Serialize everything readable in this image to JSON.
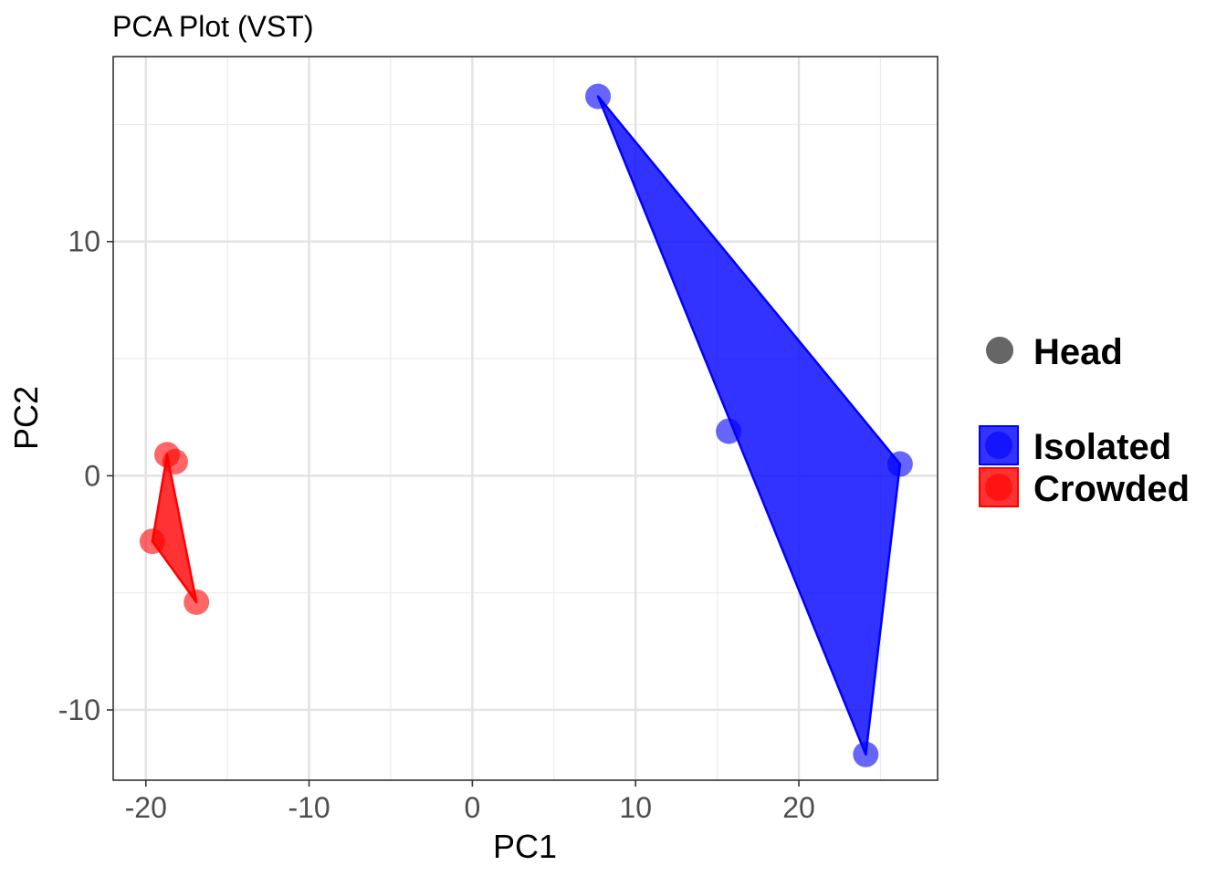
{
  "chart_data": {
    "type": "scatter",
    "title": "PCA Plot (VST)",
    "xlabel": "PC1",
    "ylabel": "PC2",
    "xlim": [
      -22,
      28.5
    ],
    "ylim": [
      -13,
      17.9
    ],
    "x_ticks": [
      -20,
      -10,
      0,
      10,
      20
    ],
    "y_ticks": [
      -10,
      0,
      10
    ],
    "x_tick_labels": [
      "-20",
      "-10",
      "0",
      "10",
      "20"
    ],
    "y_tick_labels": [
      "-10",
      "0",
      "10"
    ],
    "grid": true,
    "legend_position": "right",
    "shape_legend": {
      "label": "Head",
      "color": "#666666"
    },
    "series": [
      {
        "name": "Isolated",
        "color": "#0000ff",
        "points": [
          {
            "x": 7.7,
            "y": 16.2
          },
          {
            "x": 15.7,
            "y": 1.9
          },
          {
            "x": 26.2,
            "y": 0.5
          },
          {
            "x": 24.1,
            "y": -11.9
          }
        ],
        "hull": [
          {
            "x": 7.7,
            "y": 16.2
          },
          {
            "x": 26.2,
            "y": 0.5
          },
          {
            "x": 24.1,
            "y": -11.9
          }
        ]
      },
      {
        "name": "Crowded",
        "color": "#ff0000",
        "points": [
          {
            "x": -18.7,
            "y": 0.9
          },
          {
            "x": -18.2,
            "y": 0.6
          },
          {
            "x": -19.6,
            "y": -2.8
          },
          {
            "x": -16.9,
            "y": -5.4
          }
        ],
        "hull": [
          {
            "x": -18.7,
            "y": 0.9
          },
          {
            "x": -19.6,
            "y": -2.8
          },
          {
            "x": -16.9,
            "y": -5.4
          }
        ]
      }
    ]
  }
}
